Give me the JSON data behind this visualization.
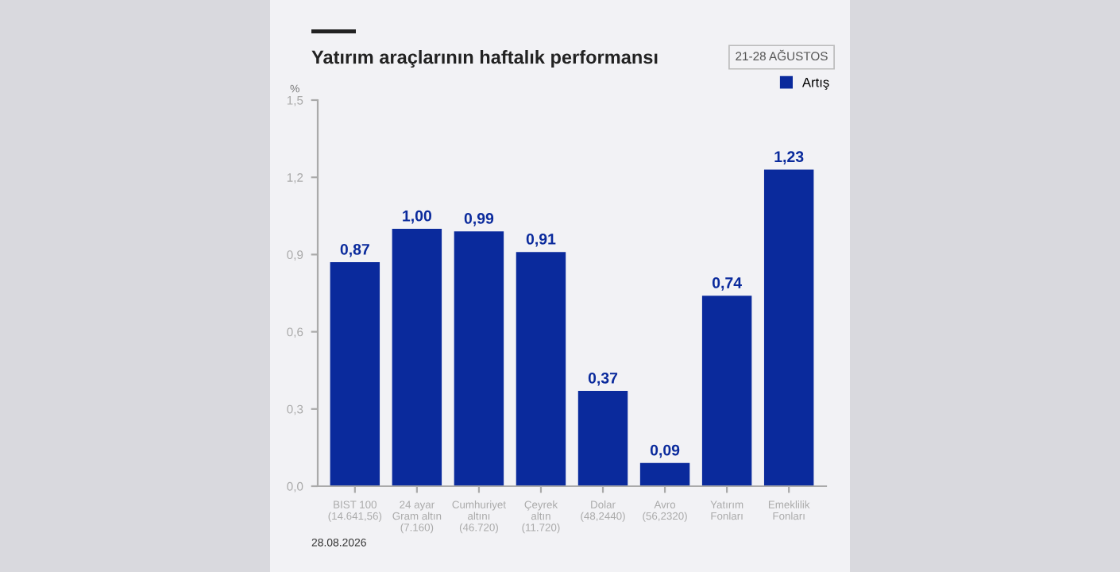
{
  "chart_data": {
    "type": "bar",
    "title": "Yatırım araçlarının haftalık performansı",
    "subtitle": "21-28 AĞUSTOS",
    "ylabel": "%",
    "categories": [
      "BIST 100\n(14.641,56)",
      "24 ayar\nGram altın\n(7.160)",
      "Cumhuriyet\naltını\n(46.720)",
      "Çeyrek\naltın\n(11.720)",
      "Dolar\n(48,2440)",
      "Avro\n(56,2320)",
      "Yatırım\nFonları",
      "Emeklilik\nFonları"
    ],
    "series": [
      {
        "name": "Artış",
        "color": "#0a2a9c",
        "values": [
          0.87,
          1.0,
          0.99,
          0.91,
          0.37,
          0.09,
          0.74,
          1.23
        ],
        "value_labels": [
          "0,87",
          "1,00",
          "0,99",
          "0,91",
          "0,37",
          "0,09",
          "0,74",
          "1,23"
        ]
      }
    ],
    "ylim": [
      0,
      1.5
    ],
    "yticks": [
      {
        "value": 0,
        "label": "0,0"
      },
      {
        "value": 0.3,
        "label": "0,3"
      },
      {
        "value": 0.6,
        "label": "0,6"
      },
      {
        "value": 0.9,
        "label": "0,9"
      },
      {
        "value": 1.2,
        "label": "1,2"
      },
      {
        "value": 1.5,
        "label": "1,5"
      }
    ],
    "grid": false,
    "legend": "top right",
    "annotations": [
      "28.08.2026"
    ]
  }
}
